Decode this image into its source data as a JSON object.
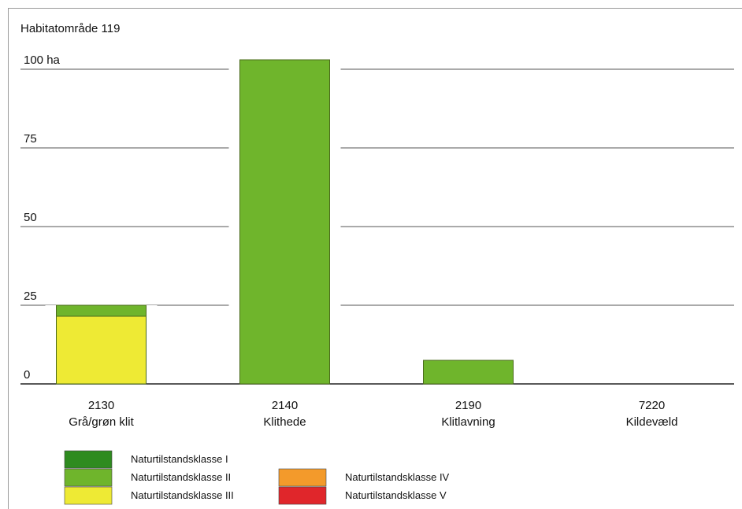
{
  "chart_data": {
    "type": "bar",
    "title": "Habitatområde 119",
    "categories": [
      "2130",
      "2140",
      "2190",
      "7220"
    ],
    "category_names": [
      "Grå/grøn klit",
      "Klithede",
      "Klitlavning",
      "Kildevæld"
    ],
    "y_ticks": [
      "0",
      "25",
      "50",
      "75",
      "100 ha"
    ],
    "ylim": [
      0,
      100
    ],
    "stacked": true,
    "series": [
      {
        "name": "Naturtilstandsklasse I",
        "color": "#2e8b1f",
        "values": [
          0,
          0,
          0,
          0
        ]
      },
      {
        "name": "Naturtilstandsklasse II",
        "color": "#6fb52c",
        "values": [
          3.5,
          103,
          7.5,
          0
        ]
      },
      {
        "name": "Naturtilstandsklasse III",
        "color": "#eeea34",
        "values": [
          21.5,
          0,
          0,
          0
        ]
      },
      {
        "name": "Naturtilstandsklasse IV",
        "color": "#f39a2b",
        "values": [
          0,
          0,
          0,
          0
        ]
      },
      {
        "name": "Naturtilstandsklasse V",
        "color": "#e0262b",
        "values": [
          0,
          0,
          0,
          0
        ]
      }
    ],
    "grid": true,
    "legend": "bottom-left"
  }
}
